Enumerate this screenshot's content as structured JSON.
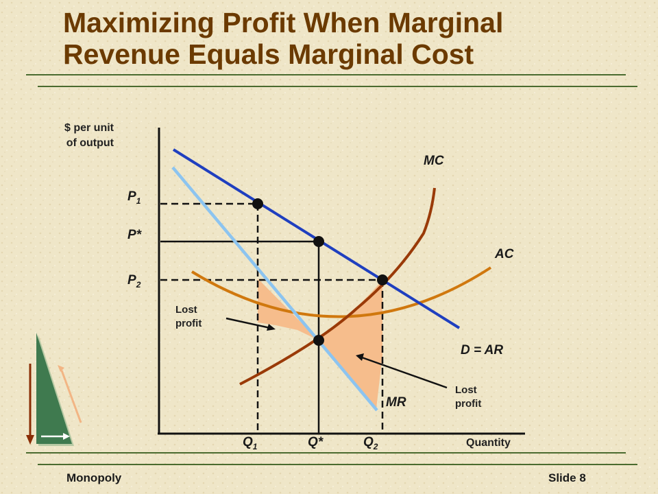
{
  "slide": {
    "title": "Maximizing Profit When Marginal Revenue Equals Marginal Cost",
    "footer_left": "Monopoly",
    "footer_right": "Slide 8"
  },
  "diagram": {
    "y_axis_label": "$ per unit of output",
    "x_axis_label": "Quantity",
    "price_labels": {
      "p1": "P",
      "p1_sub": "1",
      "pstar": "P*",
      "p2": "P",
      "p2_sub": "2"
    },
    "quantity_labels": {
      "q1": "Q",
      "q1_sub": "1",
      "qstar": "Q*",
      "q2": "Q",
      "q2_sub": "2"
    },
    "curve_labels": {
      "mc": "MC",
      "ac": "AC",
      "demand": "D = AR",
      "mr": "MR"
    },
    "annotations": {
      "lost_profit_left": "Lost profit",
      "lost_profit_right": "Lost profit"
    },
    "colors": {
      "demand": "#1f3fbf",
      "mr": "#8cc4f0",
      "mc": "#9a3a08",
      "ac": "#d0780e",
      "lost_profit_fill": "#f6bd8c",
      "axis": "#111111",
      "title": "#6b3a00"
    }
  },
  "decoration": {
    "corner_icon": "triangle-arrows-icon"
  }
}
